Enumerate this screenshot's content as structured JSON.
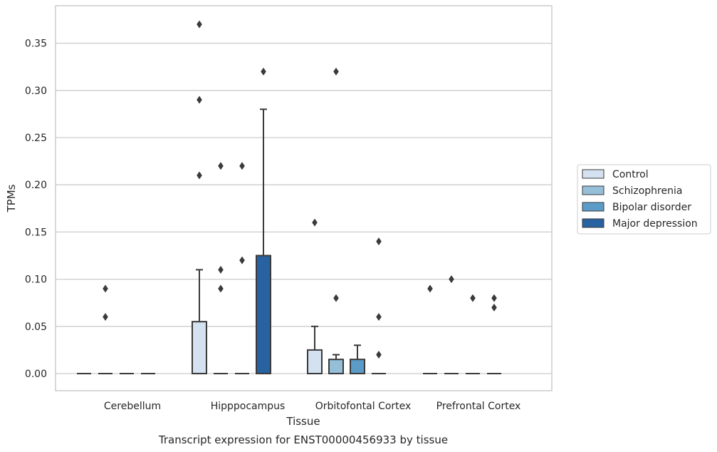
{
  "chart_data": {
    "type": "box",
    "caption": "Transcript expression for ENST00000456933 by tissue",
    "xlabel": "Tissue",
    "ylabel": "TPMs",
    "categories": [
      "Cerebellum",
      "Hipppocampus",
      "Orbitofontal Cortex",
      "Prefrontal Cortex"
    ],
    "ylim": [
      -0.018,
      0.388
    ],
    "yticks": [
      "0.00",
      "0.05",
      "0.10",
      "0.15",
      "0.20",
      "0.25",
      "0.30",
      "0.35"
    ],
    "grid": "horizontal",
    "legend_position": "right",
    "series": [
      {
        "name": "Control",
        "color": "#d3e1f0",
        "boxes": [
          {
            "q1": 0.0,
            "median": 0.0,
            "q3": 0.0,
            "whisker_low": 0.0,
            "whisker_high": 0.0,
            "outliers": []
          },
          {
            "q1": 0.0,
            "median": 0.0,
            "q3": 0.055,
            "whisker_low": 0.0,
            "whisker_high": 0.11,
            "outliers": [
              0.21,
              0.29,
              0.37
            ]
          },
          {
            "q1": 0.0,
            "median": 0.0,
            "q3": 0.025,
            "whisker_low": 0.0,
            "whisker_high": 0.05,
            "outliers": [
              0.16
            ]
          },
          {
            "q1": 0.0,
            "median": 0.0,
            "q3": 0.0,
            "whisker_low": 0.0,
            "whisker_high": 0.0,
            "outliers": [
              0.09
            ]
          }
        ]
      },
      {
        "name": "Schizophrenia",
        "color": "#95bed8",
        "boxes": [
          {
            "q1": 0.0,
            "median": 0.0,
            "q3": 0.0,
            "whisker_low": 0.0,
            "whisker_high": 0.0,
            "outliers": [
              0.06,
              0.09
            ]
          },
          {
            "q1": 0.0,
            "median": 0.0,
            "q3": 0.0,
            "whisker_low": 0.0,
            "whisker_high": 0.0,
            "outliers": [
              0.09,
              0.11,
              0.22
            ]
          },
          {
            "q1": 0.0,
            "median": 0.0,
            "q3": 0.015,
            "whisker_low": 0.0,
            "whisker_high": 0.02,
            "outliers": [
              0.08,
              0.32
            ]
          },
          {
            "q1": 0.0,
            "median": 0.0,
            "q3": 0.0,
            "whisker_low": 0.0,
            "whisker_high": 0.0,
            "outliers": [
              0.1
            ]
          }
        ]
      },
      {
        "name": "Bipolar disorder",
        "color": "#5a9bc7",
        "boxes": [
          {
            "q1": 0.0,
            "median": 0.0,
            "q3": 0.0,
            "whisker_low": 0.0,
            "whisker_high": 0.0,
            "outliers": []
          },
          {
            "q1": 0.0,
            "median": 0.0,
            "q3": 0.0,
            "whisker_low": 0.0,
            "whisker_high": 0.0,
            "outliers": [
              0.12,
              0.22
            ]
          },
          {
            "q1": 0.0,
            "median": 0.0,
            "q3": 0.015,
            "whisker_low": 0.0,
            "whisker_high": 0.03,
            "outliers": []
          },
          {
            "q1": 0.0,
            "median": 0.0,
            "q3": 0.0,
            "whisker_low": 0.0,
            "whisker_high": 0.0,
            "outliers": [
              0.08
            ]
          }
        ]
      },
      {
        "name": "Major depression",
        "color": "#2862a0",
        "boxes": [
          {
            "q1": 0.0,
            "median": 0.0,
            "q3": 0.0,
            "whisker_low": 0.0,
            "whisker_high": 0.0,
            "outliers": []
          },
          {
            "q1": 0.0,
            "median": 0.0,
            "q3": 0.125,
            "whisker_low": 0.0,
            "whisker_high": 0.28,
            "outliers": [
              0.32
            ]
          },
          {
            "q1": 0.0,
            "median": 0.0,
            "q3": 0.0,
            "whisker_low": 0.0,
            "whisker_high": 0.0,
            "outliers": [
              0.02,
              0.06,
              0.14
            ]
          },
          {
            "q1": 0.0,
            "median": 0.0,
            "q3": 0.0,
            "whisker_low": 0.0,
            "whisker_high": 0.0,
            "outliers": [
              0.07,
              0.08
            ]
          }
        ]
      }
    ]
  }
}
